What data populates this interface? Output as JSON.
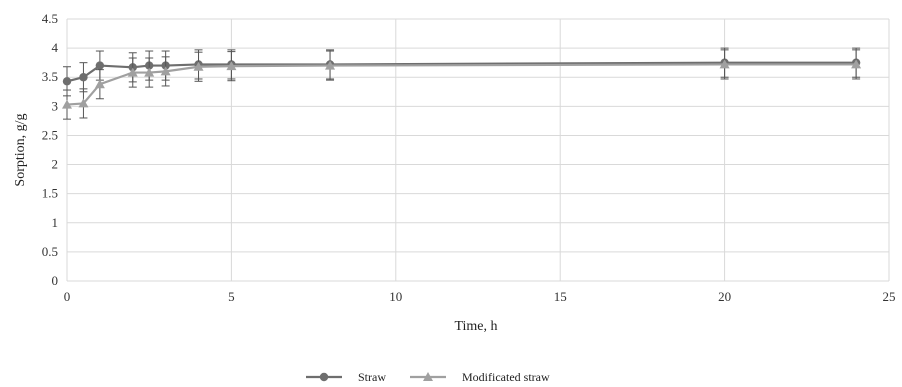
{
  "chart_data": {
    "type": "line",
    "xlabel": "Time, h",
    "ylabel": "Sorption, g/g",
    "xlim": [
      0,
      25
    ],
    "ylim": [
      0,
      4.5
    ],
    "xticks": [
      0,
      5,
      10,
      15,
      20,
      25
    ],
    "yticks": [
      0,
      0.5,
      1,
      1.5,
      2,
      2.5,
      3,
      3.5,
      4,
      4.5
    ],
    "xtick_labels": [
      "0",
      "5",
      "10",
      "15",
      "20",
      "25"
    ],
    "ytick_labels": [
      "0",
      "0.5",
      "1",
      "1.5",
      "2",
      "2.5",
      "3",
      "3.5",
      "4",
      "4.5"
    ],
    "grid": true,
    "legend_position": "bottom",
    "series": [
      {
        "name": "Straw",
        "marker": "circle",
        "color": "#6e6e6e",
        "x": [
          0,
          0.5,
          1,
          2,
          2.5,
          3,
          4,
          5,
          8,
          20,
          24
        ],
        "y": [
          3.43,
          3.5,
          3.7,
          3.67,
          3.7,
          3.7,
          3.72,
          3.72,
          3.72,
          3.75,
          3.75
        ],
        "error": [
          0.25,
          0.25,
          0.25,
          0.25,
          0.25,
          0.25,
          0.25,
          0.25,
          0.25,
          0.25,
          0.25
        ]
      },
      {
        "name": "Modificated straw",
        "marker": "triangle",
        "color": "#a0a0a0",
        "x": [
          0,
          0.5,
          1,
          2,
          2.5,
          3,
          4,
          5,
          8,
          20,
          24
        ],
        "y": [
          3.03,
          3.05,
          3.38,
          3.58,
          3.58,
          3.6,
          3.68,
          3.69,
          3.7,
          3.72,
          3.72
        ],
        "error": [
          0.25,
          0.25,
          0.25,
          0.25,
          0.25,
          0.25,
          0.25,
          0.25,
          0.25,
          0.25,
          0.25
        ]
      }
    ]
  }
}
